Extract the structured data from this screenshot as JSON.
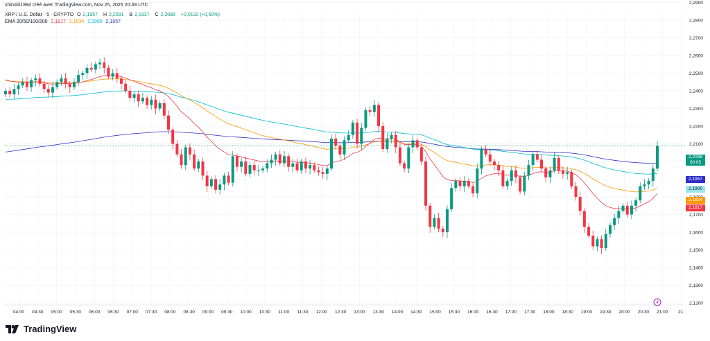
{
  "header": {
    "publisher": "shinobi1994 créé avec TradingView.com, Nov 25, 2025 20:49 UTC",
    "symbol": "XRP / U.S. Dollar · 5 · CRYPTO",
    "open_label": "O",
    "open": "2,1957",
    "high_label": "H",
    "high": "2,2091",
    "low_label": "B",
    "low": "2,1937",
    "close_label": "C",
    "close": "2,2088",
    "change": "+0,0132 (+0,60%)",
    "ema_label": "EMA 20/50/100/200",
    "ema20": "2,1817",
    "ema50": "2,1834",
    "ema100": "2,1900",
    "ema200": "2,1957"
  },
  "price_tags": {
    "last": "2,2088",
    "countdown": "00:05",
    "ema200": "2,1957",
    "ema100": "2,1900",
    "ema50": "2,1834",
    "ema20": "2,1817"
  },
  "brand": "TradingView",
  "colors": {
    "up": "#089981",
    "down": "#f23645",
    "ema20": "#f23645",
    "ema50": "#ff9800",
    "ema100": "#00bcd4",
    "ema200": "#2f2fc8",
    "grid": "#f0f3fa",
    "text": "#131722"
  },
  "chart_data": {
    "type": "candlestick",
    "title": "XRP / U.S. Dollar · 5 · CRYPTO",
    "ylim": [
      2.12,
      2.3
    ],
    "y_ticks": [
      "2,1200",
      "2,1300",
      "2,1400",
      "2,1500",
      "2,1600",
      "2,1700",
      "2,1800",
      "2,1900",
      "2,2000",
      "2,2100",
      "2,2200",
      "2,2300",
      "2,2400",
      "2,2500",
      "2,2600",
      "2,2700",
      "2,2800",
      "2,2900"
    ],
    "x_ticks": [
      "04:00",
      "04:30",
      "05:00",
      "05:30",
      "06:00",
      "06:30",
      "07:00",
      "07:30",
      "08:00",
      "08:30",
      "09:00",
      "09:30",
      "10:00",
      "10:30",
      "11:00",
      "11:30",
      "12:00",
      "12:30",
      "13:00",
      "13:30",
      "14:00",
      "14:30",
      "15:00",
      "15:30",
      "16:00",
      "16:30",
      "17:00",
      "17:30",
      "18:00",
      "18:30",
      "19:00",
      "19:30",
      "20:00",
      "20:30",
      "21:00",
      "21:"
    ],
    "x_start": "04:00",
    "interval_minutes": 5,
    "close_series_approx": [
      2.24,
      2.238,
      2.241,
      2.243,
      2.245,
      2.242,
      2.246,
      2.247,
      2.244,
      2.241,
      2.239,
      2.242,
      2.245,
      2.247,
      2.244,
      2.242,
      2.245,
      2.249,
      2.25,
      2.253,
      2.252,
      2.255,
      2.256,
      2.253,
      2.248,
      2.25,
      2.247,
      2.244,
      2.24,
      2.236,
      2.238,
      2.234,
      2.236,
      2.232,
      2.235,
      2.23,
      2.233,
      2.226,
      2.218,
      2.21,
      2.204,
      2.198,
      2.208,
      2.204,
      2.196,
      2.2,
      2.192,
      2.186,
      2.19,
      2.184,
      2.187,
      2.192,
      2.188,
      2.203,
      2.197,
      2.2,
      2.193,
      2.198,
      2.195,
      2.195,
      2.196,
      2.199,
      2.201,
      2.204,
      2.199,
      2.203,
      2.197,
      2.199,
      2.195,
      2.2,
      2.196,
      2.198,
      2.195,
      2.194,
      2.193,
      2.196,
      2.213,
      2.209,
      2.204,
      2.212,
      2.215,
      2.222,
      2.21,
      2.219,
      2.229,
      2.228,
      2.232,
      2.22,
      2.207,
      2.213,
      2.215,
      2.208,
      2.199,
      2.196,
      2.208,
      2.212,
      2.208,
      2.2,
      2.175,
      2.163,
      2.168,
      2.162,
      2.16,
      2.173,
      2.185,
      2.189,
      2.186,
      2.189,
      2.186,
      2.182,
      2.196,
      2.207,
      2.204,
      2.2,
      2.198,
      2.195,
      2.186,
      2.189,
      2.195,
      2.191,
      2.183,
      2.192,
      2.198,
      2.204,
      2.201,
      2.196,
      2.191,
      2.195,
      2.202,
      2.195,
      2.193,
      2.194,
      2.186,
      2.18,
      2.172,
      2.163,
      2.158,
      2.152,
      2.156,
      2.151,
      2.159,
      2.164,
      2.168,
      2.172,
      2.175,
      2.17,
      2.175,
      2.178,
      2.186,
      2.187,
      2.189,
      2.196,
      2.2088
    ],
    "series": [
      {
        "name": "EMA 20",
        "value_last": 2.1817
      },
      {
        "name": "EMA 50",
        "value_last": 2.1834
      },
      {
        "name": "EMA 100",
        "value_last": 2.19
      },
      {
        "name": "EMA 200",
        "value_last": 2.1957
      }
    ],
    "last_price": 2.2088
  }
}
